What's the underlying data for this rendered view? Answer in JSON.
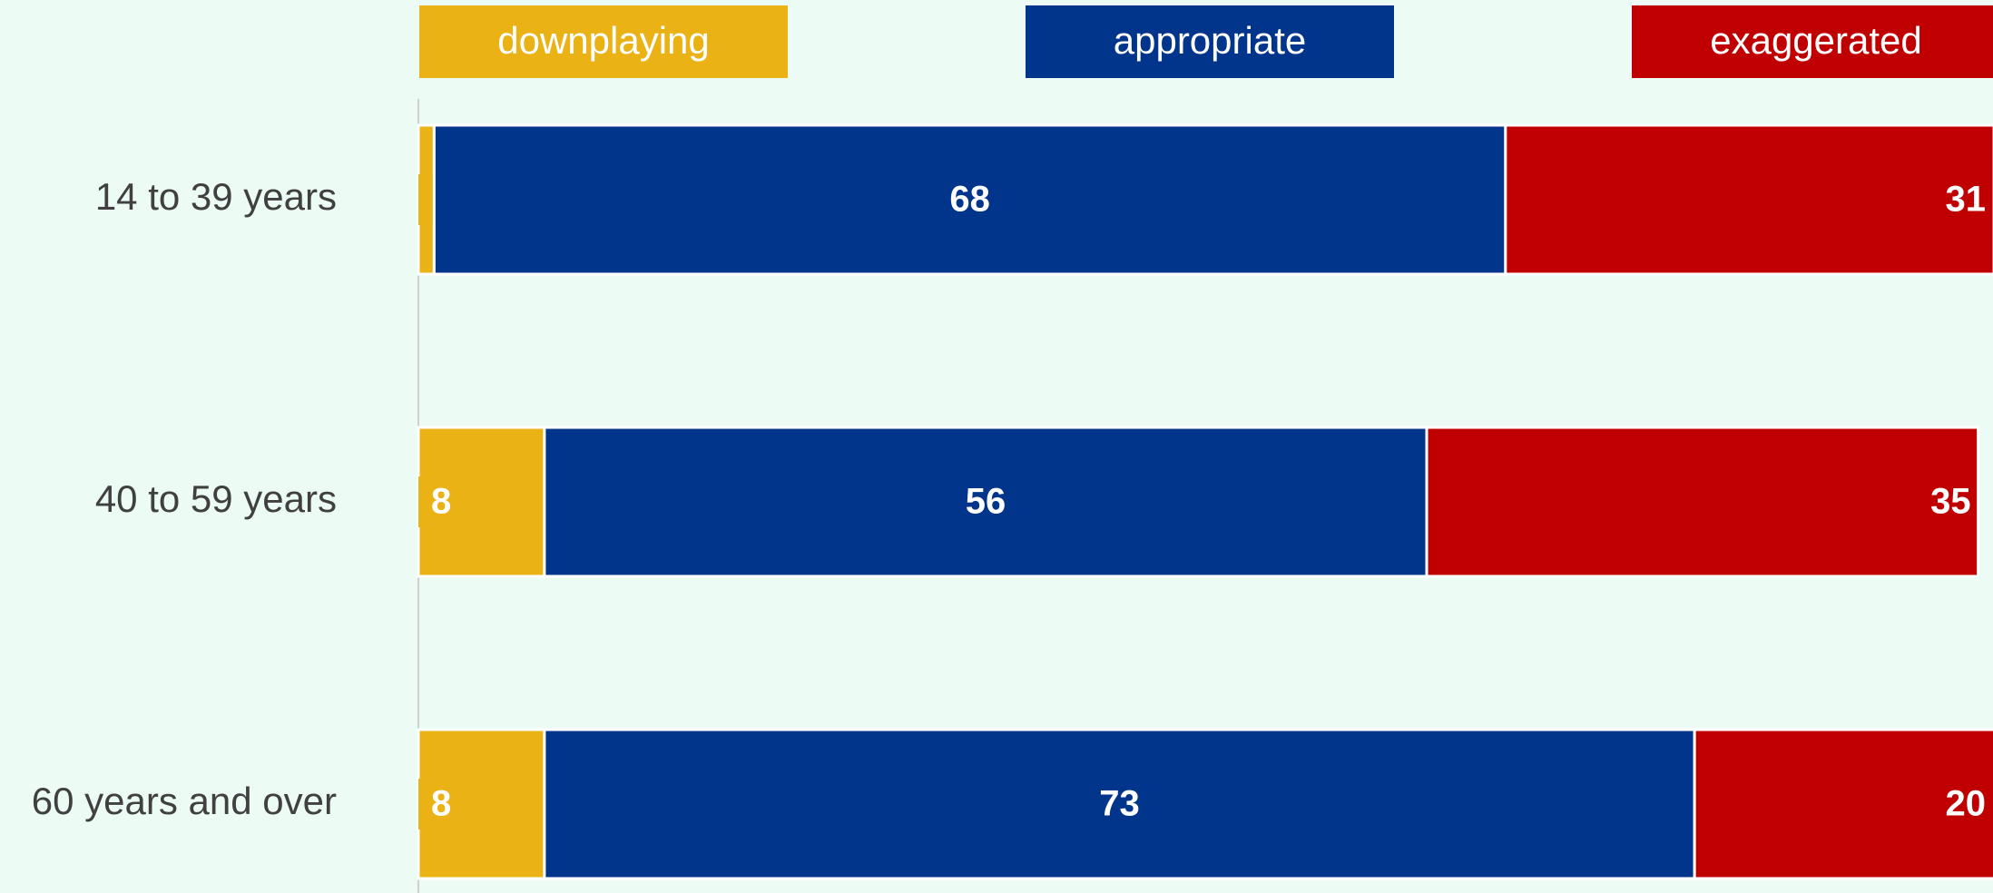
{
  "chart_data": {
    "type": "stacked-barh",
    "categories": [
      "14 to 39 years",
      "40 to 59 years",
      "60 years and over"
    ],
    "series": [
      {
        "name": "downplaying",
        "color": "#eab214",
        "values": [
          1,
          8,
          8
        ]
      },
      {
        "name": "appropriate",
        "color": "#00358b",
        "values": [
          68,
          56,
          73
        ]
      },
      {
        "name": "exaggerated",
        "color": "#c00000",
        "values": [
          31,
          35,
          20
        ]
      }
    ],
    "xlim": [
      0,
      100
    ]
  }
}
